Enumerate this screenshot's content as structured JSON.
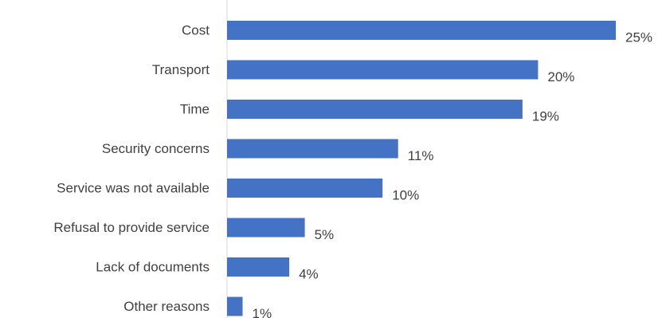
{
  "chart_data": {
    "type": "bar",
    "orientation": "horizontal",
    "title": "",
    "xlabel": "",
    "ylabel": "",
    "categories": [
      "Cost",
      "Transport",
      "Time",
      "Security concerns",
      "Service was not available",
      "Refusal to provide service",
      "Lack of documents",
      "Other reasons"
    ],
    "values": [
      25,
      20,
      19,
      11,
      10,
      5,
      4,
      1
    ],
    "value_labels": [
      "25%",
      "20%",
      "19%",
      "11%",
      "10%",
      "5%",
      "4%",
      "1%"
    ],
    "unit": "%",
    "xlim": [
      0,
      25
    ],
    "grid": false,
    "legend": "none",
    "bar_color": "#4472C4"
  }
}
